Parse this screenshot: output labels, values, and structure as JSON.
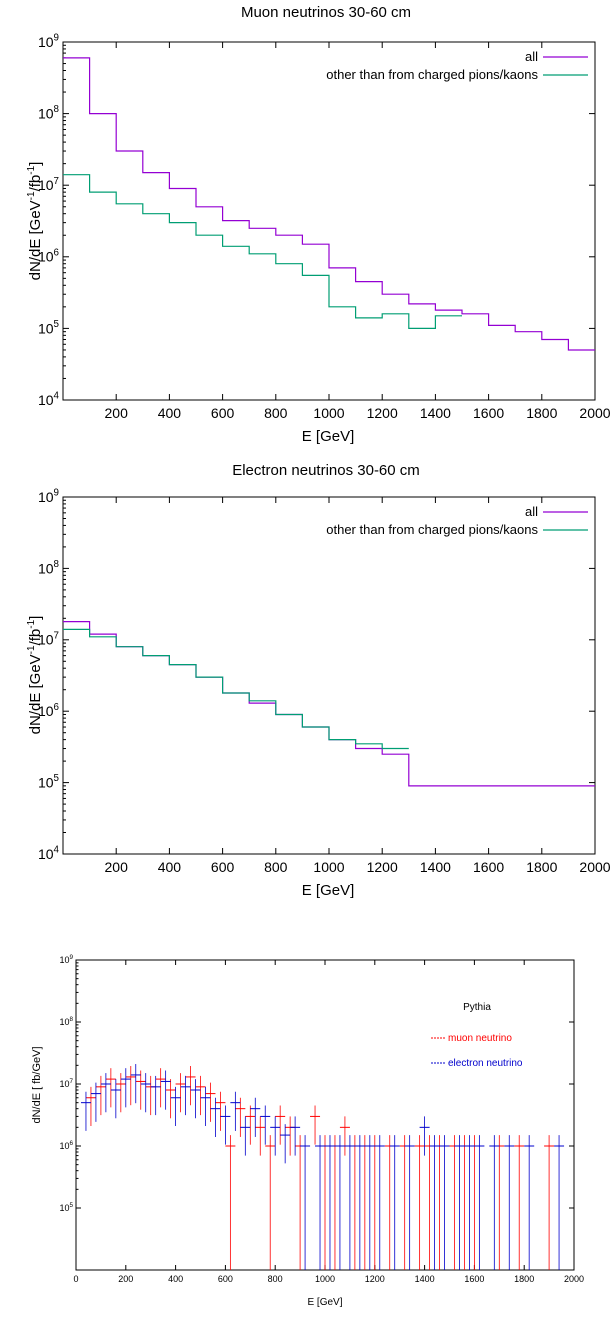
{
  "chart_data": [
    {
      "type": "line",
      "title": "Muon neutrinos 30-60 cm",
      "xlabel": "E [GeV]",
      "ylabel": "dN/dE [GeV",
      "ylabel_sup1": "-1",
      "ylabel_mid": "/fb",
      "ylabel_sup2": "-1",
      "ylabel_end": "]",
      "xlim": [
        0,
        2000
      ],
      "ylim": [
        10000,
        1000000000
      ],
      "yscale": "log",
      "x_ticks": [
        200,
        400,
        600,
        800,
        1000,
        1200,
        1400,
        1600,
        1800,
        2000
      ],
      "y_ticks": [
        {
          "base": "10",
          "exp": "4"
        },
        {
          "base": "10",
          "exp": "5"
        },
        {
          "base": "10",
          "exp": "6"
        },
        {
          "base": "10",
          "exp": "7"
        },
        {
          "base": "10",
          "exp": "8"
        },
        {
          "base": "10",
          "exp": "9"
        }
      ],
      "legend_position": "top-right",
      "series": [
        {
          "name": "all",
          "color": "#9400d3",
          "x": [
            0,
            100,
            200,
            300,
            400,
            500,
            600,
            700,
            800,
            900,
            1000,
            1100,
            1200,
            1300,
            1400,
            1500,
            1600,
            1700,
            1800,
            1900,
            2000
          ],
          "y": [
            600000000,
            100000000,
            30000000,
            15000000,
            9000000,
            5000000,
            3200000,
            2500000,
            2000000,
            1500000,
            700000,
            450000,
            300000,
            220000,
            180000,
            160000,
            110000,
            90000,
            70000,
            50000,
            50000
          ]
        },
        {
          "name": "other than from charged pions/kaons",
          "color": "#009e73",
          "x": [
            0,
            100,
            200,
            300,
            400,
            500,
            600,
            700,
            800,
            900,
            1000,
            1100,
            1200,
            1300,
            1400,
            1500
          ],
          "y": [
            14000000,
            8000000,
            5500000,
            4000000,
            3000000,
            2000000,
            1400000,
            1100000,
            800000,
            550000,
            200000,
            140000,
            160000,
            100000,
            150000,
            100000
          ]
        }
      ]
    },
    {
      "type": "line",
      "title": "Electron neutrinos 30-60 cm",
      "xlabel": "E [GeV]",
      "ylabel": "dN/dE [GeV",
      "ylabel_sup1": "-1",
      "ylabel_mid": "/fb",
      "ylabel_sup2": "-1",
      "ylabel_end": "]",
      "xlim": [
        0,
        2000
      ],
      "ylim": [
        10000,
        1000000000
      ],
      "yscale": "log",
      "x_ticks": [
        200,
        400,
        600,
        800,
        1000,
        1200,
        1400,
        1600,
        1800,
        2000
      ],
      "y_ticks": [
        {
          "base": "10",
          "exp": "4"
        },
        {
          "base": "10",
          "exp": "5"
        },
        {
          "base": "10",
          "exp": "6"
        },
        {
          "base": "10",
          "exp": "7"
        },
        {
          "base": "10",
          "exp": "8"
        },
        {
          "base": "10",
          "exp": "9"
        }
      ],
      "legend_position": "top-right",
      "series": [
        {
          "name": "all",
          "color": "#9400d3",
          "x": [
            0,
            100,
            200,
            300,
            400,
            500,
            600,
            700,
            800,
            900,
            1000,
            1100,
            1200,
            1300,
            1400,
            1500,
            1600,
            1700,
            1800,
            1900,
            2000
          ],
          "y": [
            18000000,
            12000000,
            8000000,
            6000000,
            4500000,
            3000000,
            1800000,
            1300000,
            900000,
            600000,
            400000,
            300000,
            250000,
            90000,
            90000,
            90000,
            90000,
            90000,
            90000,
            90000,
            90000
          ]
        },
        {
          "name": "other than from charged pions/kaons",
          "color": "#009e73",
          "x": [
            0,
            100,
            200,
            300,
            400,
            500,
            600,
            700,
            800,
            900,
            1000,
            1100,
            1200,
            1300
          ],
          "y": [
            14000000,
            11000000,
            8000000,
            6000000,
            4500000,
            3000000,
            1800000,
            1400000,
            900000,
            600000,
            400000,
            350000,
            300000,
            280000
          ]
        }
      ]
    },
    {
      "type": "scatter",
      "title": "",
      "xlabel": "E [GeV]",
      "ylabel": "dN/dE [ fb/GeV]",
      "xlim": [
        0,
        2000
      ],
      "ylim": [
        10000,
        1000000000
      ],
      "yscale": "log",
      "x_ticks": [
        0,
        200,
        400,
        600,
        800,
        1000,
        1200,
        1400,
        1600,
        1800,
        2000
      ],
      "y_ticks": [
        {
          "base": "10",
          "exp": "5"
        },
        {
          "base": "10",
          "exp": "6"
        },
        {
          "base": "10",
          "exp": "7"
        },
        {
          "base": "10",
          "exp": "8"
        },
        {
          "base": "10",
          "exp": "9"
        }
      ],
      "legend_title": "Pythia",
      "legend_position": "top-right",
      "series": [
        {
          "name": "muon neutrino",
          "color": "#ff0000",
          "error_bars": true,
          "x": [
            60,
            100,
            140,
            180,
            220,
            260,
            300,
            340,
            380,
            420,
            460,
            500,
            540,
            580,
            620,
            660,
            700,
            740,
            780,
            820,
            860,
            900,
            960,
            1000,
            1040,
            1080,
            1120,
            1160,
            1200,
            1260,
            1320,
            1380,
            1420,
            1460,
            1520,
            1560,
            1600,
            1700,
            1780,
            1900
          ],
          "y": [
            6000000,
            9000000,
            12000000,
            10000000,
            13000000,
            11000000,
            9000000,
            12000000,
            8000000,
            10000000,
            13000000,
            9000000,
            7000000,
            5000000,
            1000000,
            4000000,
            3000000,
            2000000,
            1000000,
            3000000,
            2000000,
            1000000,
            3000000,
            1000000,
            1000000,
            2000000,
            1000000,
            1000000,
            1000000,
            1000000,
            1000000,
            1000000,
            1000000,
            1000000,
            1000000,
            1000000,
            1000000,
            1000000,
            1000000,
            1000000
          ]
        },
        {
          "name": "electron neutrino",
          "color": "#0000cc",
          "error_bars": true,
          "x": [
            40,
            80,
            120,
            160,
            200,
            240,
            280,
            320,
            360,
            400,
            440,
            480,
            520,
            560,
            600,
            640,
            680,
            720,
            760,
            800,
            840,
            880,
            920,
            980,
            1020,
            1060,
            1100,
            1140,
            1180,
            1220,
            1280,
            1340,
            1400,
            1440,
            1480,
            1540,
            1580,
            1620,
            1680,
            1740,
            1820,
            1940
          ],
          "y": [
            5000000,
            7000000,
            10000000,
            8000000,
            12000000,
            14000000,
            10000000,
            9000000,
            11000000,
            6000000,
            9000000,
            8000000,
            6000000,
            4000000,
            3000000,
            5000000,
            2000000,
            4000000,
            3000000,
            2000000,
            1500000,
            2000000,
            1000000,
            1000000,
            1000000,
            1000000,
            1000000,
            1000000,
            1000000,
            1000000,
            1000000,
            1000000,
            2000000,
            1000000,
            1000000,
            1000000,
            1000000,
            1000000,
            1000000,
            1000000,
            1000000,
            1000000
          ]
        }
      ]
    }
  ]
}
